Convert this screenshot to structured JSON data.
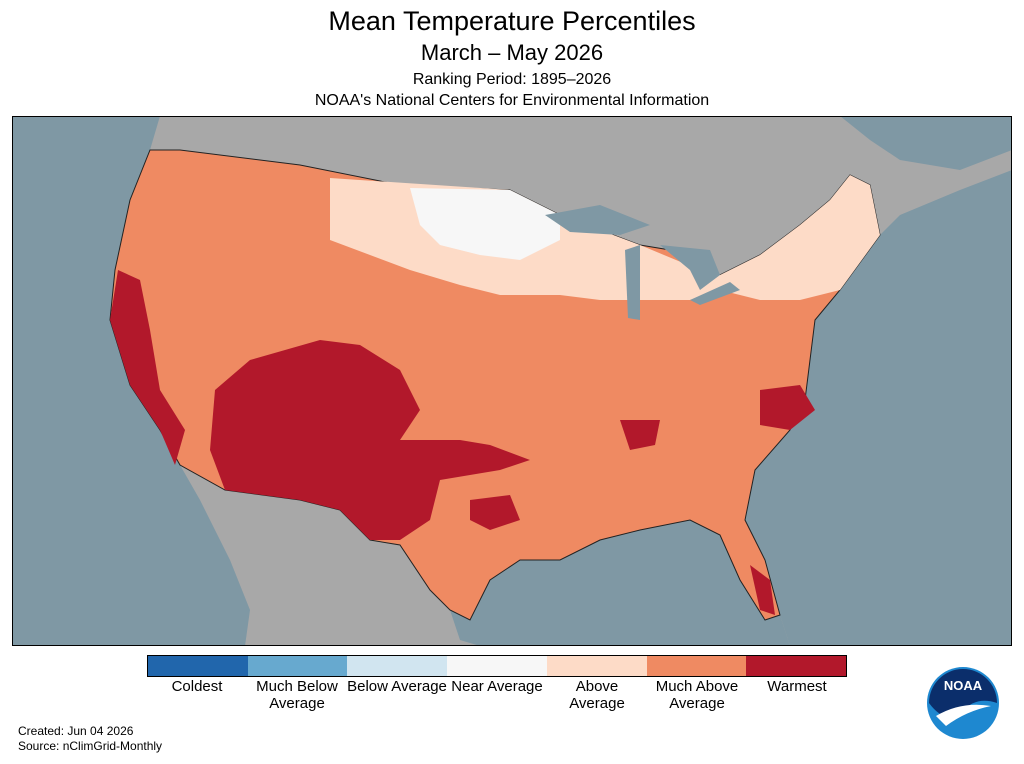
{
  "header": {
    "title": "Mean Temperature Percentiles",
    "subtitle": "March – May 2026",
    "ranking_period": "Ranking Period: 1895–2026",
    "agency": "NOAA's National Centers for Environmental Information"
  },
  "legend": [
    {
      "label": "Coldest",
      "color": "#2166ac"
    },
    {
      "label": "Much Below Average",
      "color": "#67a9cf"
    },
    {
      "label": "Below Average",
      "color": "#d1e5f0"
    },
    {
      "label": "Near Average",
      "color": "#f7f7f7"
    },
    {
      "label": "Above Average",
      "color": "#fddbc7"
    },
    {
      "label": "Much Above Average",
      "color": "#ef8a62"
    },
    {
      "label": "Warmest",
      "color": "#b2182b"
    }
  ],
  "footer": {
    "created": "Created: Jun 04 2026",
    "source": "Source: nClimGrid-Monthly"
  },
  "logo": {
    "text": "NOAA"
  }
}
